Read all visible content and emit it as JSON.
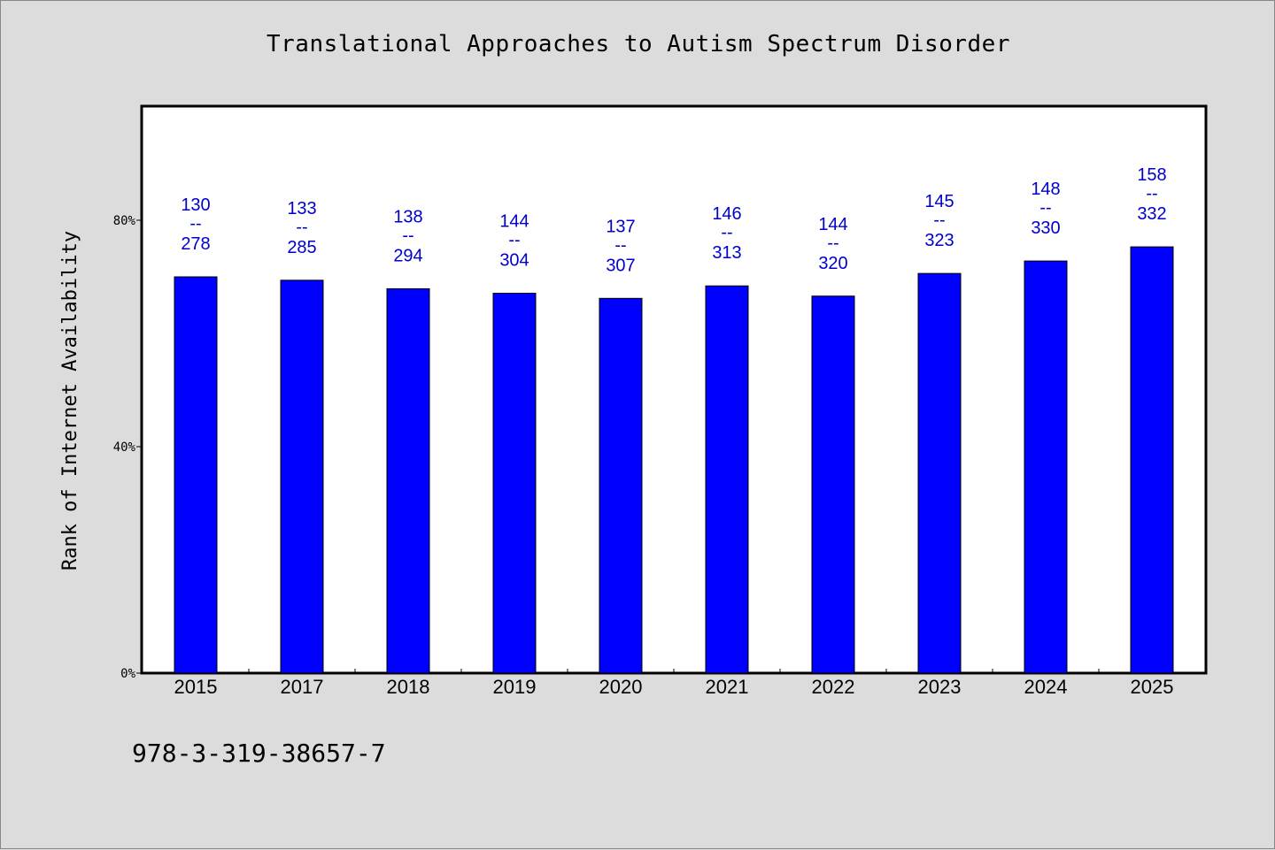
{
  "page": {
    "title": "Translational Approaches to Autism Spectrum Disorder",
    "isbn": "978-3-319-38657-7"
  },
  "colors": {
    "background": "#dcdcdc",
    "plot_background": "#ffffff",
    "bar": "#0000ff",
    "data_label": "#0000cc"
  },
  "chart_data": {
    "type": "bar",
    "title": "Translational Approaches to Autism Spectrum Disorder",
    "xlabel": "",
    "ylabel": "Rank of Internet Availability",
    "ylim": [
      0,
      100
    ],
    "yticks": [
      0,
      40,
      80
    ],
    "ytick_labels": [
      "0%",
      "40%",
      "80%"
    ],
    "grid": false,
    "legend": "none",
    "categories": [
      "2015",
      "2017",
      "2018",
      "2019",
      "2020",
      "2021",
      "2022",
      "2023",
      "2024",
      "2025"
    ],
    "values": [
      70,
      69.4,
      67.9,
      67.1,
      66.2,
      68.4,
      66.6,
      70.6,
      72.8,
      75.3
    ],
    "data_labels": [
      {
        "top": "130",
        "sep": "--",
        "bottom": "278"
      },
      {
        "top": "133",
        "sep": "--",
        "bottom": "285"
      },
      {
        "top": "138",
        "sep": "--",
        "bottom": "294"
      },
      {
        "top": "144",
        "sep": "--",
        "bottom": "304"
      },
      {
        "top": "137",
        "sep": "--",
        "bottom": "307"
      },
      {
        "top": "146",
        "sep": "--",
        "bottom": "313"
      },
      {
        "top": "144",
        "sep": "--",
        "bottom": "320"
      },
      {
        "top": "145",
        "sep": "--",
        "bottom": "323"
      },
      {
        "top": "148",
        "sep": "--",
        "bottom": "330"
      },
      {
        "top": "158",
        "sep": "--",
        "bottom": "332"
      }
    ]
  }
}
